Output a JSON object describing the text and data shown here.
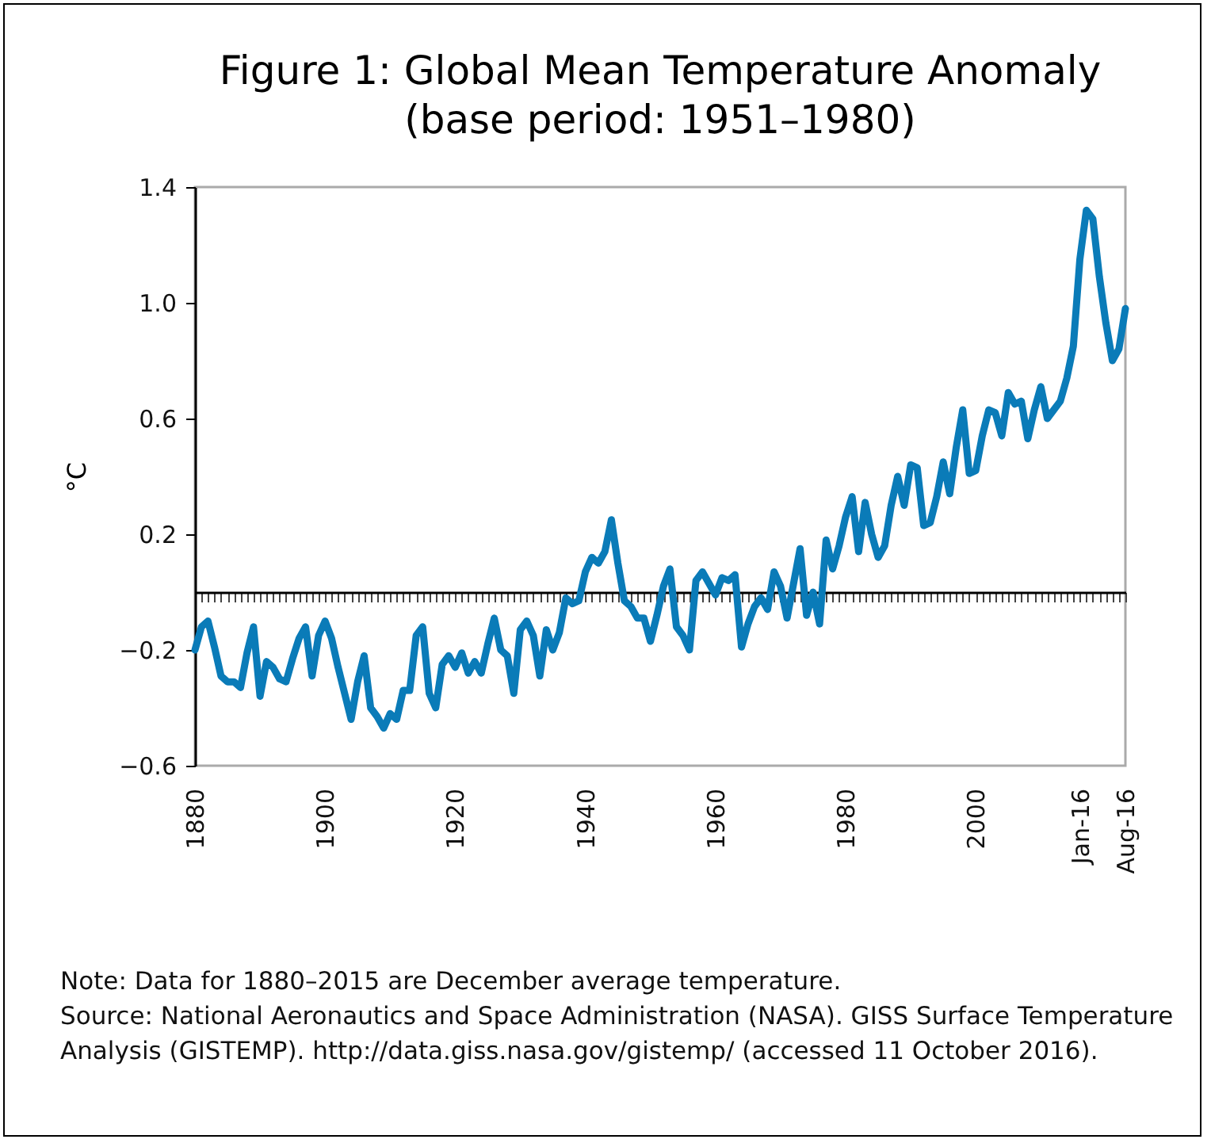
{
  "chart_data": {
    "type": "line",
    "title": "Figure 1: Global Mean Temperature Anomaly",
    "subtitle": "(base period: 1951–1980)",
    "ylabel": "°C",
    "categories": [
      "1880",
      null,
      null,
      null,
      null,
      null,
      null,
      null,
      null,
      null,
      null,
      null,
      null,
      null,
      null,
      null,
      null,
      null,
      null,
      null,
      "1900",
      null,
      null,
      null,
      null,
      null,
      null,
      null,
      null,
      null,
      null,
      null,
      null,
      null,
      null,
      null,
      null,
      null,
      null,
      null,
      "1920",
      null,
      null,
      null,
      null,
      null,
      null,
      null,
      null,
      null,
      null,
      null,
      null,
      null,
      null,
      null,
      null,
      null,
      null,
      null,
      "1940",
      null,
      null,
      null,
      null,
      null,
      null,
      null,
      null,
      null,
      null,
      null,
      null,
      null,
      null,
      null,
      null,
      null,
      null,
      null,
      "1960",
      null,
      null,
      null,
      null,
      null,
      null,
      null,
      null,
      null,
      null,
      null,
      null,
      null,
      null,
      null,
      null,
      null,
      null,
      null,
      "1980",
      null,
      null,
      null,
      null,
      null,
      null,
      null,
      null,
      null,
      null,
      null,
      null,
      null,
      null,
      null,
      null,
      null,
      null,
      null,
      "2000",
      null,
      null,
      null,
      null,
      null,
      null,
      null,
      null,
      null,
      null,
      null,
      null,
      null,
      null,
      null,
      "Jan-16",
      null,
      null,
      null,
      null,
      null,
      null,
      "Aug-16"
    ],
    "series": [
      {
        "color": "#0a7bb8",
        "values": [
          -0.2,
          -0.12,
          -0.1,
          -0.19,
          -0.29,
          -0.31,
          -0.31,
          -0.33,
          -0.21,
          -0.12,
          -0.36,
          -0.24,
          -0.26,
          -0.3,
          -0.31,
          -0.23,
          -0.16,
          -0.12,
          -0.29,
          -0.15,
          -0.1,
          -0.16,
          -0.26,
          -0.35,
          -0.44,
          -0.31,
          -0.22,
          -0.4,
          -0.43,
          -0.47,
          -0.42,
          -0.44,
          -0.34,
          -0.34,
          -0.15,
          -0.12,
          -0.35,
          -0.4,
          -0.25,
          -0.22,
          -0.26,
          -0.21,
          -0.28,
          -0.24,
          -0.28,
          -0.18,
          -0.09,
          -0.2,
          -0.22,
          -0.35,
          -0.13,
          -0.1,
          -0.15,
          -0.29,
          -0.13,
          -0.2,
          -0.14,
          -0.02,
          -0.04,
          -0.03,
          0.07,
          0.12,
          0.1,
          0.14,
          0.25,
          0.1,
          -0.03,
          -0.05,
          -0.09,
          -0.09,
          -0.17,
          -0.08,
          0.02,
          0.08,
          -0.12,
          -0.15,
          -0.2,
          0.04,
          0.07,
          0.03,
          -0.01,
          0.05,
          0.04,
          0.06,
          -0.19,
          -0.11,
          -0.05,
          -0.02,
          -0.06,
          0.07,
          0.02,
          -0.09,
          0.03,
          0.15,
          -0.08,
          0,
          -0.11,
          0.18,
          0.08,
          0.16,
          0.26,
          0.33,
          0.14,
          0.31,
          0.2,
          0.12,
          0.16,
          0.3,
          0.4,
          0.3,
          0.44,
          0.43,
          0.23,
          0.24,
          0.33,
          0.45,
          0.34,
          0.5,
          0.63,
          0.41,
          0.42,
          0.54,
          0.63,
          0.62,
          0.54,
          0.69,
          0.65,
          0.66,
          0.53,
          0.63,
          0.71,
          0.6,
          0.63,
          0.66,
          0.74,
          0.85,
          1.15,
          1.32,
          1.29,
          1.09,
          0.93,
          0.8,
          0.84,
          0.98
        ]
      }
    ],
    "ylim": [
      -0.6,
      1.4
    ],
    "yticks": [
      {
        "value": -0.6,
        "label": "−0.6"
      },
      {
        "value": -0.2,
        "label": "−0.2"
      },
      0.2,
      0.6,
      {
        "value": 1,
        "label": "1.0"
      },
      1.4
    ],
    "annotations": [
      "Note: Data for 1880–2015 are December average temperature.",
      "Source: National Aeronautics and Space Administration (NASA). GISS Surface Temperature Analysis (GISTEMP). http://data.giss.nasa.gov/gistemp/ (accessed 11 October 2016)."
    ]
  }
}
